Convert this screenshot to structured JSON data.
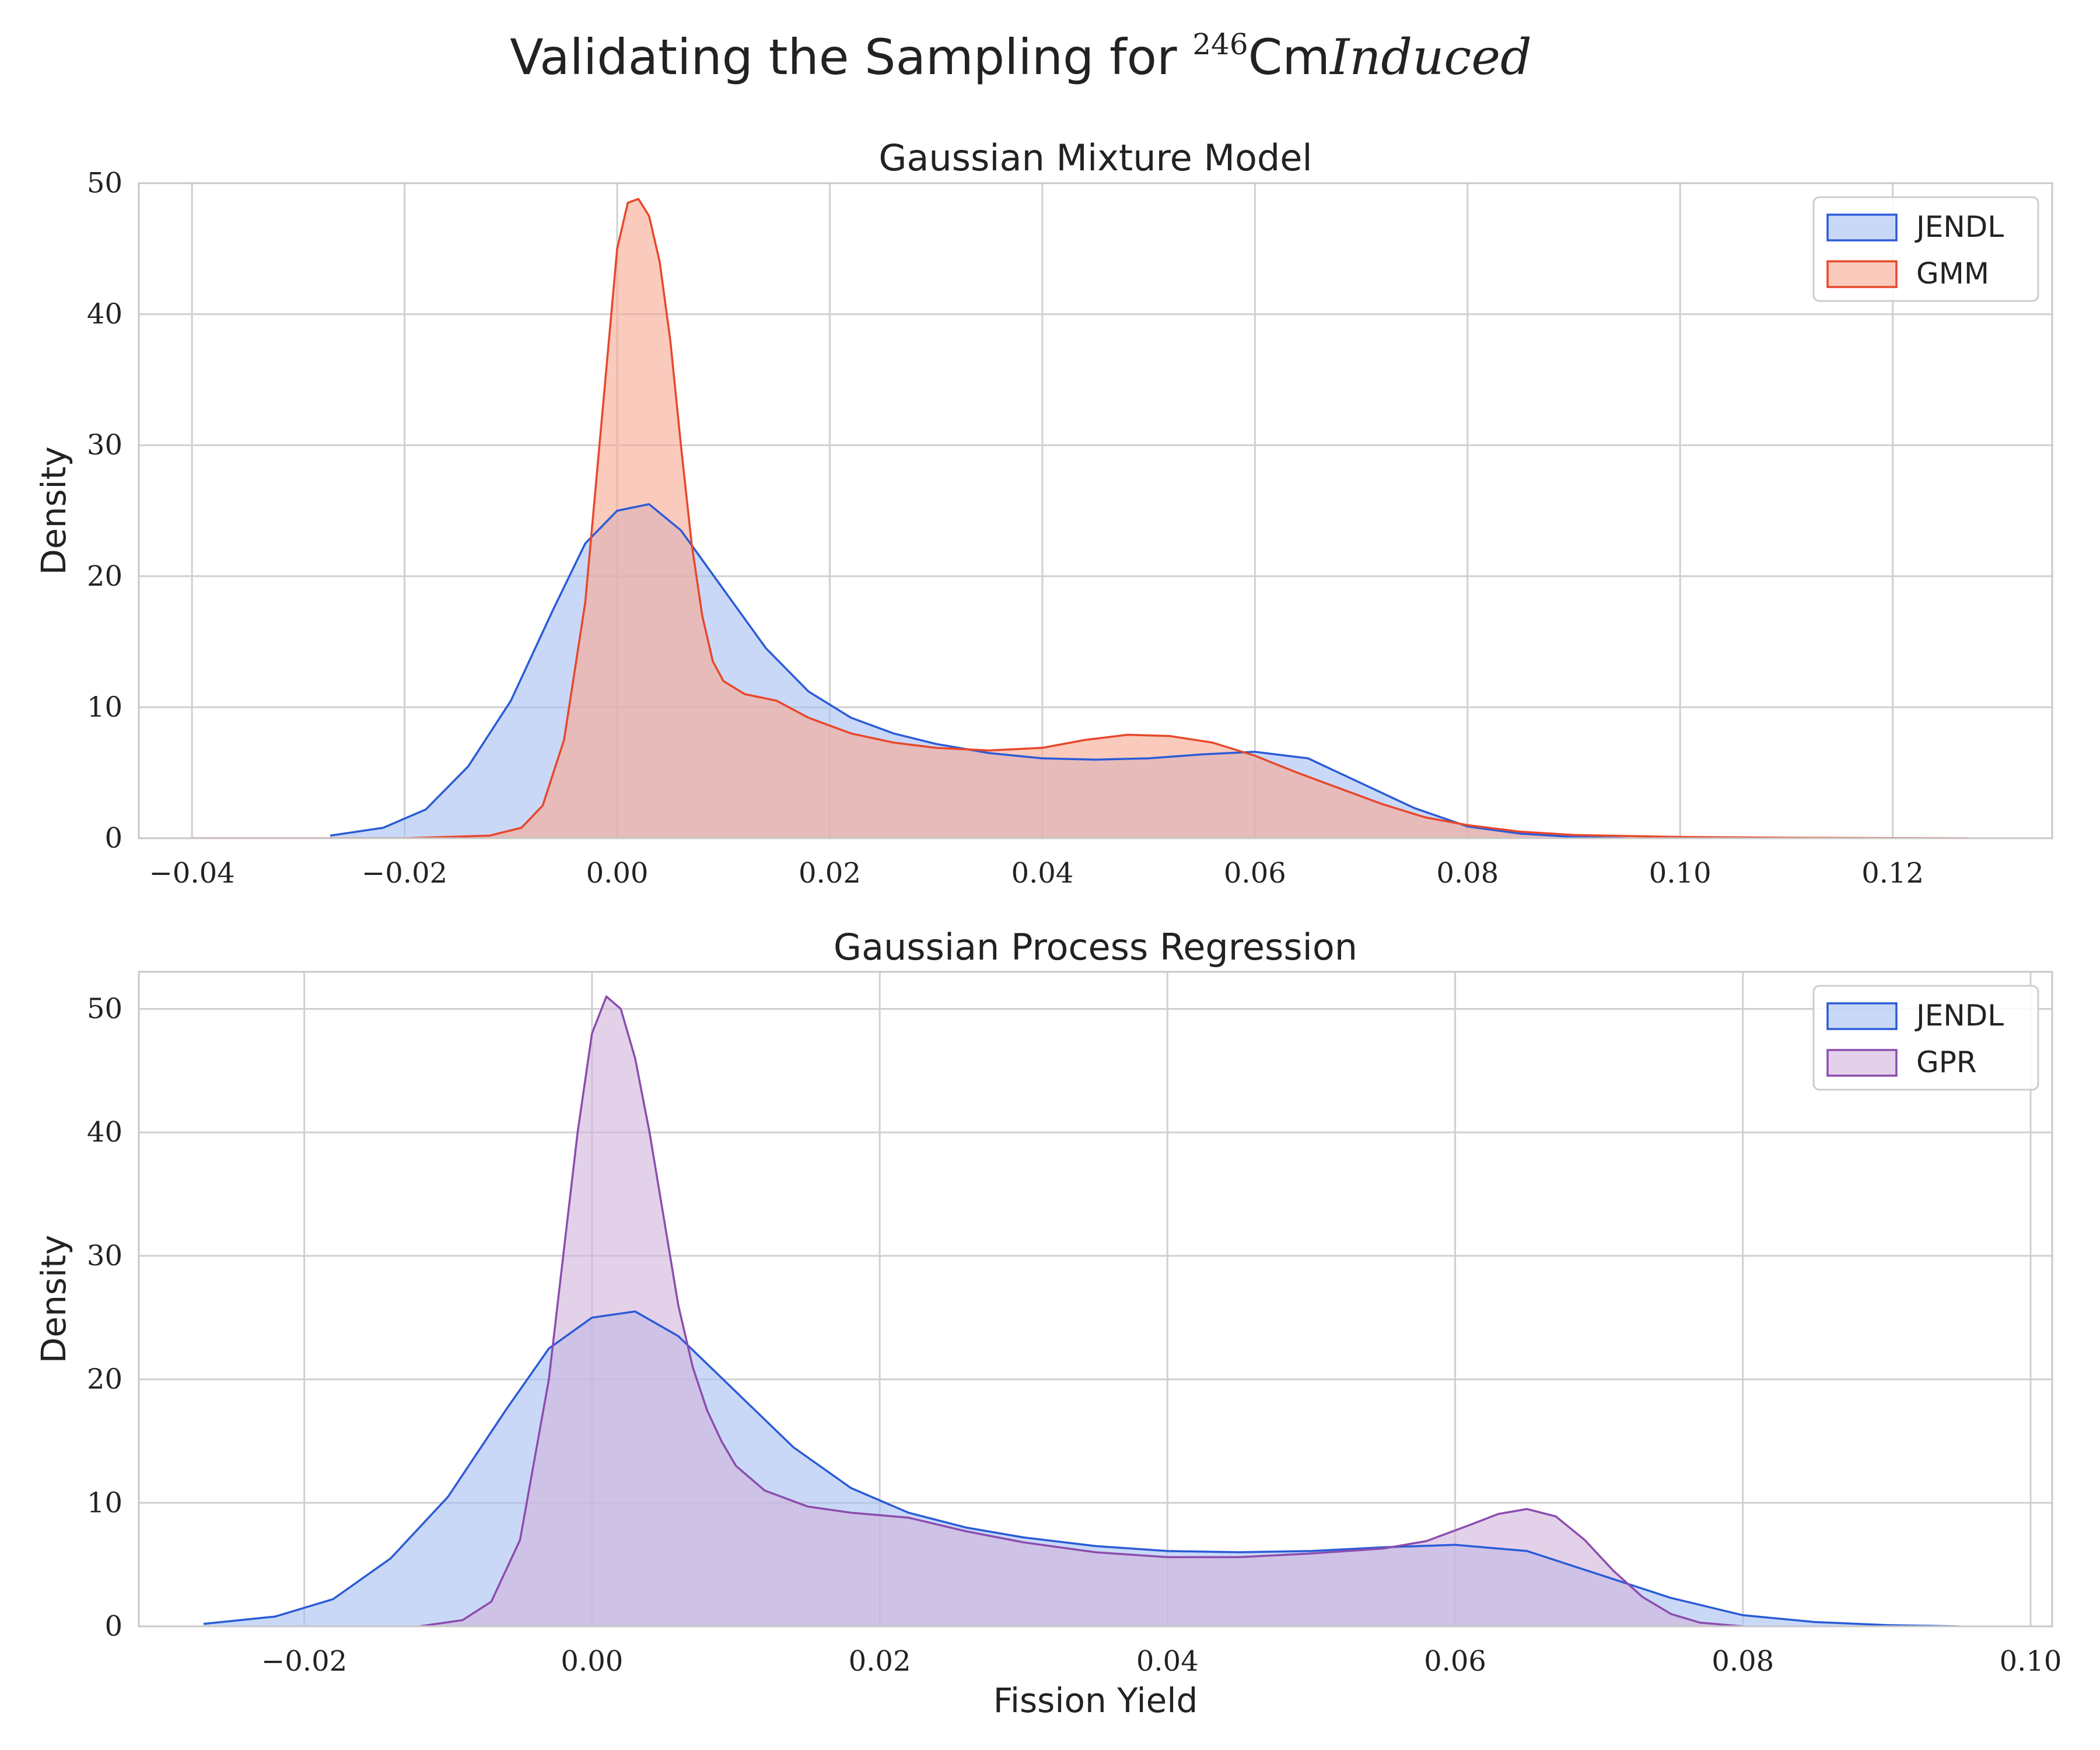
{
  "figure": {
    "title_prefix": "Validating the Sampling for ",
    "title_sup": "246",
    "title_element": "Cm",
    "title_italic": "Induced"
  },
  "colors": {
    "jendl_line": "#2a5bd7",
    "jendl_fill": "#a9c0f2",
    "gmm_line": "#e8472a",
    "gmm_fill": "#f7a995",
    "gpr_line": "#8b4dae",
    "gpr_fill": "#d2b4dd",
    "grid": "#d0d0d0",
    "spine": "#c8c8c8"
  },
  "chart_data": [
    {
      "type": "area",
      "title": "Gaussian Mixture Model",
      "xlabel": "",
      "ylabel": "Density",
      "xlim": [
        -0.045,
        0.135
      ],
      "ylim": [
        0,
        50
      ],
      "xticks": [
        -0.04,
        -0.02,
        0.0,
        0.02,
        0.04,
        0.06,
        0.08,
        0.1,
        0.12
      ],
      "xtick_labels": [
        "−0.04",
        "−0.02",
        "0.00",
        "0.02",
        "0.04",
        "0.06",
        "0.08",
        "0.10",
        "0.12"
      ],
      "yticks": [
        0,
        10,
        20,
        30,
        40,
        50
      ],
      "ytick_labels": [
        "0",
        "10",
        "20",
        "30",
        "40",
        "50"
      ],
      "grid": true,
      "legend": "top-right",
      "series": [
        {
          "name": "JENDL",
          "color_key": "jendl",
          "x": [
            -0.027,
            -0.022,
            -0.018,
            -0.014,
            -0.01,
            -0.006,
            -0.003,
            0.0,
            0.003,
            0.006,
            0.01,
            0.014,
            0.018,
            0.022,
            0.026,
            0.03,
            0.035,
            0.04,
            0.045,
            0.05,
            0.055,
            0.06,
            0.065,
            0.07,
            0.075,
            0.08,
            0.085,
            0.09,
            0.095
          ],
          "y": [
            0.2,
            0.8,
            2.2,
            5.5,
            10.5,
            17.5,
            22.5,
            25.0,
            25.5,
            23.5,
            19.0,
            14.5,
            11.2,
            9.2,
            8.0,
            7.2,
            6.5,
            6.1,
            6.0,
            6.1,
            6.4,
            6.6,
            6.1,
            4.2,
            2.3,
            0.9,
            0.35,
            0.1,
            0.0
          ]
        },
        {
          "name": "GMM",
          "color_key": "gmm",
          "x": [
            -0.04,
            -0.02,
            -0.012,
            -0.009,
            -0.007,
            -0.005,
            -0.003,
            -0.001,
            0.0,
            0.001,
            0.002,
            0.003,
            0.004,
            0.005,
            0.006,
            0.007,
            0.008,
            0.009,
            0.01,
            0.012,
            0.015,
            0.018,
            0.022,
            0.026,
            0.03,
            0.035,
            0.04,
            0.044,
            0.048,
            0.052,
            0.056,
            0.06,
            0.064,
            0.068,
            0.072,
            0.076,
            0.08,
            0.085,
            0.09,
            0.1,
            0.11,
            0.12,
            0.127
          ],
          "y": [
            0.0,
            0.0,
            0.2,
            0.8,
            2.5,
            7.5,
            18.0,
            36.0,
            45.0,
            48.5,
            48.8,
            47.5,
            44.0,
            38.0,
            30.0,
            22.5,
            17.0,
            13.5,
            12.0,
            11.0,
            10.5,
            9.2,
            8.0,
            7.3,
            6.9,
            6.7,
            6.9,
            7.5,
            7.9,
            7.8,
            7.3,
            6.3,
            5.0,
            3.8,
            2.6,
            1.6,
            1.0,
            0.5,
            0.25,
            0.1,
            0.04,
            0.01,
            0.0
          ]
        }
      ]
    },
    {
      "type": "area",
      "title": "Gaussian Process Regression",
      "xlabel": "Fission Yield",
      "ylabel": "Density",
      "xlim": [
        -0.0315,
        0.1015
      ],
      "ylim": [
        0,
        53
      ],
      "xticks": [
        -0.02,
        0.0,
        0.02,
        0.04,
        0.06,
        0.08,
        0.1
      ],
      "xtick_labels": [
        "−0.02",
        "0.00",
        "0.02",
        "0.04",
        "0.06",
        "0.08",
        "0.10"
      ],
      "yticks": [
        0,
        10,
        20,
        30,
        40,
        50
      ],
      "ytick_labels": [
        "0",
        "10",
        "20",
        "30",
        "40",
        "50"
      ],
      "grid": true,
      "legend": "top-right",
      "series": [
        {
          "name": "JENDL",
          "color_key": "jendl",
          "x": [
            -0.027,
            -0.022,
            -0.018,
            -0.014,
            -0.01,
            -0.006,
            -0.003,
            0.0,
            0.003,
            0.006,
            0.01,
            0.014,
            0.018,
            0.022,
            0.026,
            0.03,
            0.035,
            0.04,
            0.045,
            0.05,
            0.055,
            0.06,
            0.065,
            0.07,
            0.075,
            0.08,
            0.085,
            0.09,
            0.095
          ],
          "y": [
            0.2,
            0.8,
            2.2,
            5.5,
            10.5,
            17.5,
            22.5,
            25.0,
            25.5,
            23.5,
            19.0,
            14.5,
            11.2,
            9.2,
            8.0,
            7.2,
            6.5,
            6.1,
            6.0,
            6.1,
            6.4,
            6.6,
            6.1,
            4.2,
            2.3,
            0.9,
            0.35,
            0.1,
            0.0
          ]
        },
        {
          "name": "GPR",
          "color_key": "gpr",
          "x": [
            -0.012,
            -0.009,
            -0.007,
            -0.005,
            -0.003,
            -0.002,
            -0.001,
            0.0,
            0.001,
            0.002,
            0.003,
            0.004,
            0.005,
            0.006,
            0.007,
            0.008,
            0.009,
            0.01,
            0.012,
            0.015,
            0.018,
            0.022,
            0.026,
            0.03,
            0.035,
            0.04,
            0.045,
            0.05,
            0.055,
            0.058,
            0.061,
            0.063,
            0.065,
            0.067,
            0.069,
            0.071,
            0.073,
            0.075,
            0.077,
            0.08
          ],
          "y": [
            0.0,
            0.5,
            2.0,
            7.0,
            20.0,
            30.0,
            40.0,
            48.0,
            51.0,
            50.0,
            46.0,
            40.0,
            33.0,
            26.0,
            21.0,
            17.5,
            15.0,
            13.0,
            11.0,
            9.7,
            9.2,
            8.8,
            7.7,
            6.8,
            6.0,
            5.6,
            5.6,
            5.9,
            6.3,
            6.9,
            8.2,
            9.1,
            9.5,
            8.9,
            7.0,
            4.5,
            2.4,
            1.0,
            0.3,
            0.0
          ]
        }
      ]
    }
  ]
}
